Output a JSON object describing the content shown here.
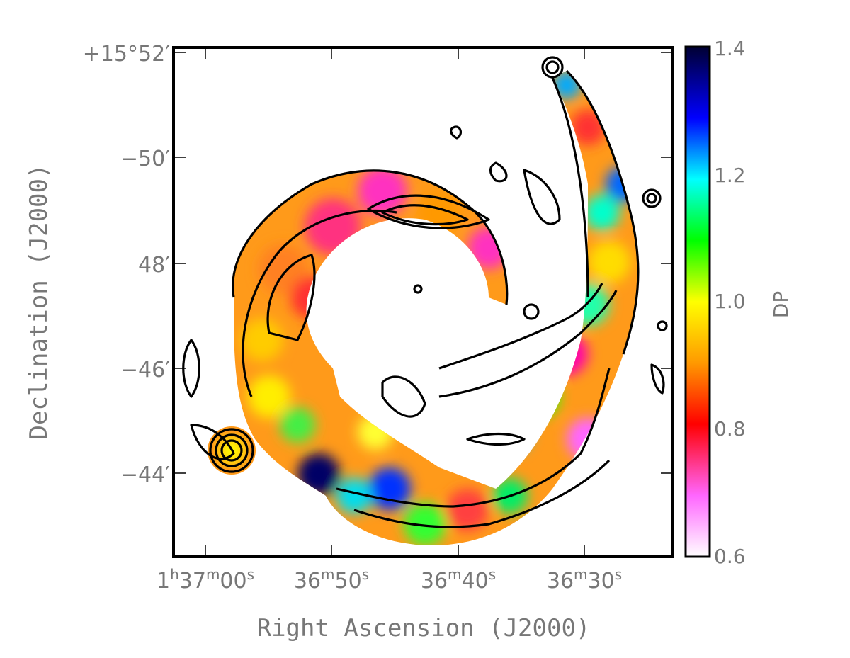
{
  "chart_data": {
    "type": "heatmap",
    "xlabel": "Right Ascension (J2000)",
    "ylabel": "Declination (J2000)",
    "colorbar": {
      "label": "DP",
      "ticks": [
        "1.4",
        "1.2",
        "1.0",
        "0.8",
        "0.6"
      ],
      "range": [
        0.6,
        1.4
      ],
      "colormap": [
        "#ffffff",
        "#ff66ff",
        "#ff0000",
        "#ff9900",
        "#ffff00",
        "#00ff00",
        "#00ffff",
        "#0000ff",
        "#000033"
      ]
    },
    "x_ticks": [
      {
        "pre": "1",
        "h": "h",
        "mid": "37",
        "m": "m",
        "sec": "00",
        "s": "s"
      },
      {
        "pre": "",
        "h": "",
        "mid": "36",
        "m": "m",
        "sec": "50",
        "s": "s"
      },
      {
        "pre": "",
        "h": "",
        "mid": "36",
        "m": "m",
        "sec": "40",
        "s": "s"
      },
      {
        "pre": "",
        "h": "",
        "mid": "36",
        "m": "m",
        "sec": "30",
        "s": "s"
      }
    ],
    "y_ticks": [
      "+15°52′",
      "−50′",
      "48′",
      "−46′",
      "−44′"
    ]
  }
}
